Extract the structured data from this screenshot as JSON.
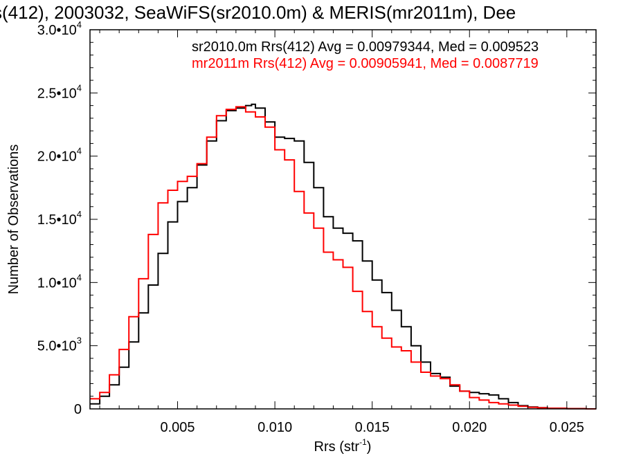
{
  "chart_data": {
    "type": "line",
    "title": "s(412), 2003032, SeaWiFS(sr2010.0m) & MERIS(mr2011m), Dee",
    "xlabel": "Rrs (str",
    "xlabel_sup": "-1",
    "xlabel_close": ")",
    "ylabel": "Number of Observations",
    "xlim": [
      0.0005,
      0.0265
    ],
    "ylim": [
      0,
      30000
    ],
    "xticks": [
      {
        "value": 0.005,
        "label": "0.005"
      },
      {
        "value": 0.01,
        "label": "0.010"
      },
      {
        "value": 0.015,
        "label": "0.015"
      },
      {
        "value": 0.02,
        "label": "0.020"
      },
      {
        "value": 0.025,
        "label": "0.025"
      }
    ],
    "yticks": [
      {
        "value": 0,
        "mant": "0",
        "exp": ""
      },
      {
        "value": 5000,
        "mant": "5.0•10",
        "exp": "3"
      },
      {
        "value": 10000,
        "mant": "1.0•10",
        "exp": "4"
      },
      {
        "value": 15000,
        "mant": "1.5•10",
        "exp": "4"
      },
      {
        "value": 20000,
        "mant": "2.0•10",
        "exp": "4"
      },
      {
        "value": 25000,
        "mant": "2.5•10",
        "exp": "4"
      },
      {
        "value": 30000,
        "mant": "3.0•10",
        "exp": "4"
      }
    ],
    "grid": false,
    "legend_position": "top-right",
    "series": [
      {
        "name": "sr2010.0m Rrs(412) Avg = 0.00979344, Med = 0.009523",
        "color": "#000000",
        "x": [
          0.0005,
          0.001,
          0.0015,
          0.002,
          0.0025,
          0.003,
          0.0035,
          0.004,
          0.0045,
          0.005,
          0.0055,
          0.006,
          0.0065,
          0.007,
          0.0075,
          0.008,
          0.0085,
          0.0088,
          0.009,
          0.0095,
          0.01,
          0.0105,
          0.011,
          0.0115,
          0.012,
          0.0125,
          0.013,
          0.0135,
          0.014,
          0.0145,
          0.015,
          0.0155,
          0.016,
          0.0165,
          0.017,
          0.0175,
          0.018,
          0.0185,
          0.019,
          0.0195,
          0.02,
          0.0205,
          0.021,
          0.0215,
          0.022,
          0.0225,
          0.023,
          0.0235,
          0.024,
          0.025,
          0.026
        ],
        "y": [
          400,
          1000,
          1900,
          3300,
          5300,
          7600,
          9800,
          12300,
          14800,
          16400,
          17500,
          19300,
          21200,
          22800,
          23600,
          23800,
          24000,
          24100,
          23800,
          22700,
          21500,
          21400,
          21200,
          19500,
          17500,
          15200,
          14300,
          13900,
          13300,
          11700,
          10200,
          9200,
          7800,
          6500,
          5000,
          3700,
          2800,
          2500,
          1800,
          1400,
          1300,
          1200,
          1100,
          800,
          500,
          250,
          150,
          100,
          50,
          20,
          0
        ]
      },
      {
        "name": "mr2011m Rrs(412) Avg = 0.00905941, Med = 0.0087719",
        "color": "#ff0000",
        "x": [
          0.0005,
          0.001,
          0.0015,
          0.002,
          0.0025,
          0.003,
          0.0035,
          0.004,
          0.0045,
          0.005,
          0.0055,
          0.006,
          0.0065,
          0.007,
          0.0075,
          0.008,
          0.0085,
          0.009,
          0.0095,
          0.01,
          0.0105,
          0.011,
          0.0115,
          0.012,
          0.0125,
          0.013,
          0.0135,
          0.014,
          0.0145,
          0.015,
          0.0155,
          0.016,
          0.0165,
          0.017,
          0.0175,
          0.018,
          0.0185,
          0.019,
          0.0195,
          0.02,
          0.0205,
          0.021,
          0.0215,
          0.022,
          0.0225,
          0.023,
          0.0235,
          0.024,
          0.025,
          0.026
        ],
        "y": [
          800,
          1300,
          2700,
          4700,
          7300,
          10300,
          13800,
          16300,
          17300,
          18000,
          18400,
          19400,
          21500,
          23200,
          23700,
          23900,
          23500,
          23100,
          22300,
          20500,
          19700,
          17200,
          15500,
          14300,
          12400,
          11800,
          11200,
          9300,
          7700,
          6500,
          5600,
          4900,
          4600,
          3700,
          2900,
          2600,
          2400,
          1900,
          1400,
          900,
          700,
          500,
          400,
          300,
          200,
          120,
          80,
          50,
          20,
          0
        ]
      }
    ]
  }
}
